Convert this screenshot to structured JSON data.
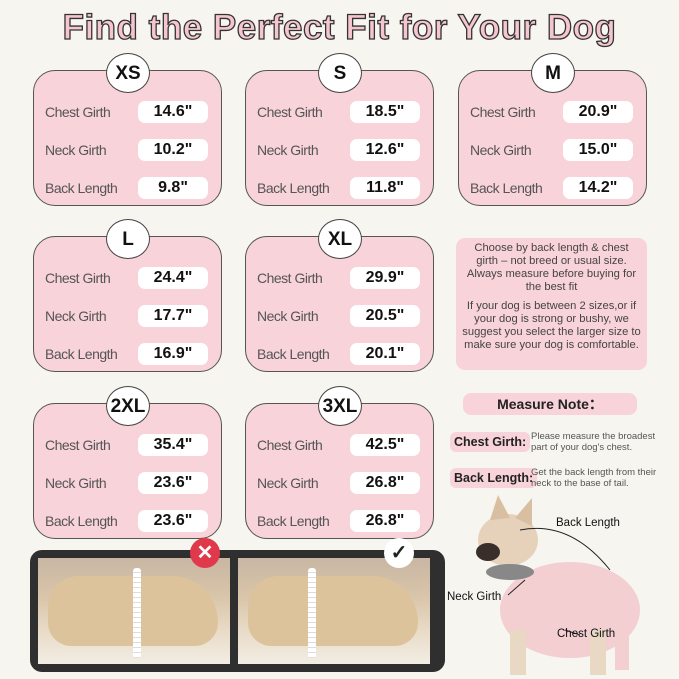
{
  "title": "Find the Perfect Fit for Your Dog",
  "labels": {
    "chest": "Chest Girth",
    "neck": "Neck Girth",
    "back": "Back Length"
  },
  "sizes": [
    {
      "size": "XS",
      "chest": "14.6\"",
      "neck": "10.2\"",
      "back": "9.8\""
    },
    {
      "size": "S",
      "chest": "18.5\"",
      "neck": "12.6\"",
      "back": "11.8\""
    },
    {
      "size": "M",
      "chest": "20.9\"",
      "neck": "15.0\"",
      "back": "14.2\""
    },
    {
      "size": "L",
      "chest": "24.4\"",
      "neck": "17.7\"",
      "back": "16.9\""
    },
    {
      "size": "XL",
      "chest": "29.9\"",
      "neck": "20.5\"",
      "back": "20.1\""
    },
    {
      "size": "2XL",
      "chest": "35.4\"",
      "neck": "23.6\"",
      "back": "23.6\""
    },
    {
      "size": "3XL",
      "chest": "42.5\"",
      "neck": "26.8\"",
      "back": "26.8\""
    }
  ],
  "tips": [
    "Choose by back length & chest girth – not breed or usual size. Always measure before buying for the best fit",
    "If your dog is between 2 sizes,or if your dog is strong or bushy, we suggest you select the larger size to make sure your dog is comfortable."
  ],
  "measure_note": {
    "title": "Measure Note：",
    "chest_key": "Chest Girth:",
    "chest_desc": "Please measure the broadest part of your dog's chest.",
    "back_key": "Back Length:",
    "back_desc": "Get the back length from their neck to the base of tail."
  },
  "diagram": {
    "back": "Back Length",
    "neck": "Neck Girth",
    "chest": "Chest Girth"
  },
  "marks": {
    "wrong_icon": "x-icon",
    "right_icon": "check-icon"
  },
  "colors": {
    "pink": "#f8d3d9",
    "background": "#f6f5ef",
    "wrong": "#e0394b"
  }
}
